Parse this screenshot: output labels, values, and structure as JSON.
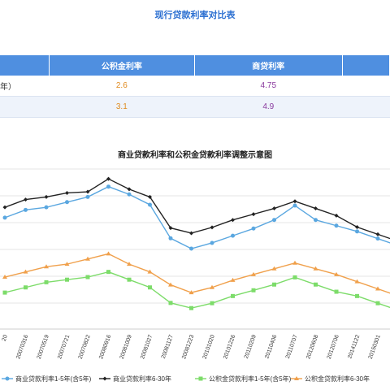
{
  "page_title": "现行贷款利率对比表",
  "table": {
    "headers": [
      "",
      "公积金利率",
      "商贷利率",
      ""
    ],
    "rows": [
      {
        "label": "年）",
        "gjj": "2.6",
        "sy": "4.75"
      },
      {
        "label": "",
        "gjj": "3.1",
        "sy": "4.9"
      }
    ]
  },
  "colors": {
    "black_series": "#222222",
    "blue_series": "#5aa7e0",
    "orange_series": "#f0a04b",
    "green_series": "#7ddc6a",
    "header_bg": "#4f8fe0"
  },
  "chart_data": {
    "type": "line",
    "title": "商业贷款利率和公积金贷款利率调整示意图",
    "categories": [
      "20",
      "20070316",
      "20070519",
      "20070721",
      "20070822",
      "20080916",
      "20081009",
      "20081027",
      "20081127",
      "20081223",
      "20101020",
      "20101226",
      "20110209",
      "20110406",
      "20110707",
      "20120608",
      "20120706",
      "20141122",
      "20150301",
      "20150"
    ],
    "series": [
      {
        "name": "商业贷款利率6-30年",
        "color_key": "black_series",
        "values": [
          6.84,
          7.11,
          7.2,
          7.34,
          7.38,
          7.83,
          7.47,
          7.2,
          6.12,
          5.94,
          6.14,
          6.4,
          6.6,
          6.8,
          7.05,
          6.8,
          6.55,
          6.15,
          5.9,
          5.65
        ]
      },
      {
        "name": "商业贷款利率1-5年(含5年)",
        "color_key": "blue_series",
        "values": [
          6.48,
          6.75,
          6.84,
          7.02,
          7.2,
          7.56,
          7.29,
          6.93,
          5.76,
          5.4,
          5.6,
          5.85,
          6.1,
          6.4,
          6.9,
          6.4,
          6.2,
          6.0,
          5.75,
          5.5
        ]
      },
      {
        "name": "公积金贷款利率6-30年",
        "color_key": "orange_series",
        "values": [
          4.41,
          4.59,
          4.77,
          4.86,
          5.04,
          5.22,
          4.86,
          4.59,
          4.14,
          3.87,
          4.05,
          4.3,
          4.5,
          4.7,
          4.9,
          4.7,
          4.5,
          4.25,
          4.0,
          3.75
        ]
      },
      {
        "name": "公积金贷款利率1-5年(含5年)",
        "color_key": "green_series",
        "values": [
          3.87,
          4.05,
          4.23,
          4.32,
          4.41,
          4.59,
          4.32,
          4.05,
          3.51,
          3.33,
          3.5,
          3.75,
          3.95,
          4.15,
          4.4,
          4.15,
          3.9,
          3.75,
          3.5,
          3.25
        ]
      }
    ],
    "legend": [
      "商业贷款利率1-5年(含5年)",
      "商业贷款利率6-30年",
      "公积金贷款利率1-5年(含5年)",
      "公积金贷款利率6-30年"
    ],
    "legend_position": "bottom",
    "grid": true,
    "ylim": [
      2.6,
      8.4
    ]
  }
}
